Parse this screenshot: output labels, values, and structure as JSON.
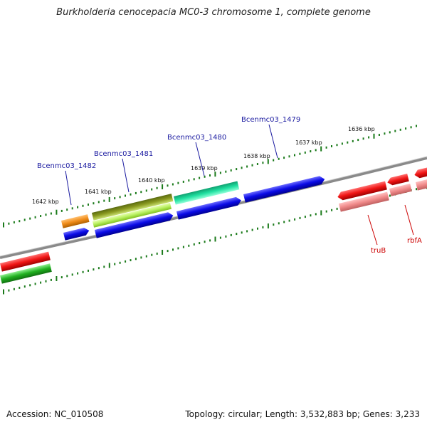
{
  "title": "Burkholderia cenocepacia MC0-3 chromosome 1, complete genome",
  "accession": "Accession: NC_010508",
  "topology": "Topology: circular; Length: 3,532,883 bp; Genes: 3,233",
  "tick_labels": [
    "1642 kbp",
    "1641 kbp",
    "1640 kbp",
    "1639 kbp",
    "1638 kbp",
    "1637 kbp",
    "1636 kbp"
  ],
  "gene_labels_top": [
    "Bcenmc03_1482",
    "Bcenmc03_1481",
    "Bcenmc03_1480",
    "Bcenmc03_1479"
  ],
  "gene_labels_bottom": [
    "truB",
    "rbfA"
  ],
  "colors": {
    "backbone": "#888888",
    "tick": "#1a7a1a",
    "label_blue": "#1a1aa0",
    "label_red": "#cc0000",
    "cds_blue": "#0a0ae6",
    "cds_red": "#f01515",
    "cds_pink": "#f08a8a",
    "cds_orange": "#f08c1a",
    "cds_olive": "#8a9a20",
    "cds_lime": "#b8f060",
    "cds_teal": "#20e0a0",
    "cds_green": "#20b020"
  }
}
